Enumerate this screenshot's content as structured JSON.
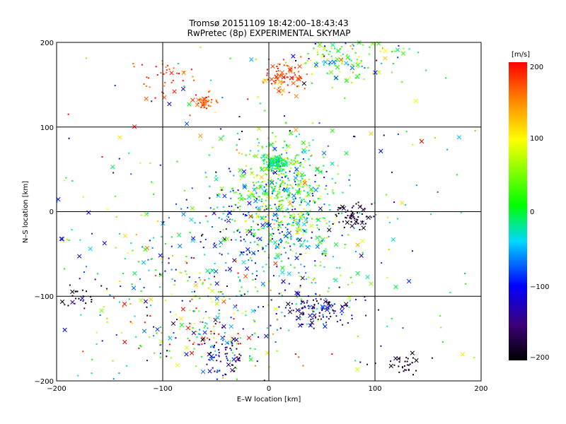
{
  "chart_data": {
    "type": "scatter",
    "title": "Tromsø 20151109 18:42:00–18:43:43",
    "subtitle": "RwPretec (8p) EXPERIMENTAL SKYMAP",
    "xlabel": "E–W location [km]",
    "ylabel": "N–S location [km]",
    "xlim": [
      -200,
      200
    ],
    "ylim": [
      -200,
      200
    ],
    "x_ticks": [
      "−200",
      "−100",
      "0",
      "100",
      "200"
    ],
    "y_ticks": [
      "−200",
      "−100",
      "0",
      "100",
      "200"
    ],
    "grid": true,
    "markers": [
      "dot",
      "cross"
    ],
    "colorbar": {
      "label": "[m/s]",
      "range": [
        -200,
        200
      ],
      "ticks": [
        "200",
        "100",
        "0",
        "−100",
        "−200"
      ],
      "colormap": [
        "#000000",
        "#3c0078",
        "#0000ff",
        "#00d8ff",
        "#00ff00",
        "#ffff00",
        "#ff8800",
        "#ff0000"
      ]
    },
    "clusters": [
      {
        "x": 12,
        "y": 30,
        "sx": 22,
        "sy": 30,
        "v": 20,
        "vs": 60,
        "n": 420
      },
      {
        "x": 5,
        "y": 58,
        "sx": 6,
        "sy": 4,
        "v": -10,
        "vs": 20,
        "n": 90
      },
      {
        "x": 25,
        "y": -20,
        "sx": 25,
        "sy": 45,
        "v": -30,
        "vs": 60,
        "n": 260
      },
      {
        "x": 15,
        "y": 160,
        "sx": 10,
        "sy": 10,
        "v": 170,
        "vs": 25,
        "n": 80
      },
      {
        "x": -60,
        "y": 130,
        "sx": 6,
        "sy": 4,
        "v": 160,
        "vs": 20,
        "n": 40
      },
      {
        "x": -100,
        "y": 155,
        "sx": 15,
        "sy": 15,
        "v": 180,
        "vs": 20,
        "n": 40
      },
      {
        "x": 70,
        "y": 185,
        "sx": 25,
        "sy": 15,
        "v": 20,
        "vs": 70,
        "n": 150
      },
      {
        "x": 78,
        "y": -5,
        "sx": 10,
        "sy": 8,
        "v": -190,
        "vs": 15,
        "n": 60
      },
      {
        "x": 45,
        "y": -115,
        "sx": 18,
        "sy": 10,
        "v": -130,
        "vs": 50,
        "n": 120
      },
      {
        "x": -30,
        "y": -30,
        "sx": 30,
        "sy": 40,
        "v": -80,
        "vs": 60,
        "n": 160
      },
      {
        "x": -60,
        "y": -140,
        "sx": 40,
        "sy": 30,
        "v": 60,
        "vs": 150,
        "n": 180
      },
      {
        "x": -45,
        "y": -165,
        "sx": 12,
        "sy": 15,
        "v": -140,
        "vs": 50,
        "n": 80
      },
      {
        "x": -180,
        "y": -100,
        "sx": 10,
        "sy": 8,
        "v": -180,
        "vs": 30,
        "n": 25
      },
      {
        "x": 125,
        "y": -180,
        "sx": 12,
        "sy": 8,
        "v": -190,
        "vs": 20,
        "n": 35
      },
      {
        "x": -130,
        "y": -60,
        "sx": 40,
        "sy": 50,
        "v": 0,
        "vs": 90,
        "n": 100
      },
      {
        "x": 0,
        "y": 0,
        "sx": 120,
        "sy": 110,
        "v": 0,
        "vs": 110,
        "n": 300
      }
    ]
  }
}
